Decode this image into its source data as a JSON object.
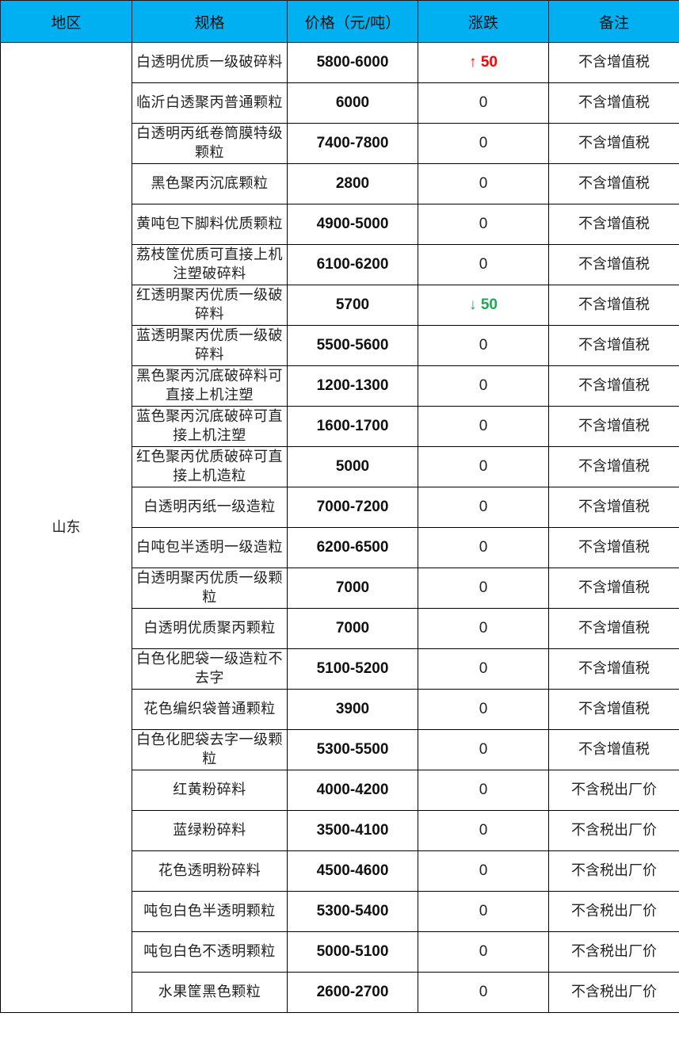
{
  "headers": [
    "地区",
    "规格",
    "价格（元/吨）",
    "涨跌",
    "备注"
  ],
  "region": "山东",
  "colors": {
    "header_bg": "#00B0F0",
    "up": "#FF0000",
    "down": "#1FA855"
  },
  "rows": [
    {
      "spec": "白透明优质一级破碎料",
      "price": "5800-6000",
      "change": "50",
      "direction": "up",
      "note": "不含增值税"
    },
    {
      "spec": "临沂白透聚丙普通颗粒",
      "price": "6000",
      "change": "0",
      "direction": "",
      "note": "不含增值税"
    },
    {
      "spec": "白透明丙纸卷筒膜特级颗粒",
      "price": "7400-7800",
      "change": "0",
      "direction": "",
      "note": "不含增值税"
    },
    {
      "spec": "黑色聚丙沉底颗粒",
      "price": "2800",
      "change": "0",
      "direction": "",
      "note": "不含增值税"
    },
    {
      "spec": "黄吨包下脚料优质颗粒",
      "price": "4900-5000",
      "change": "0",
      "direction": "",
      "note": "不含增值税"
    },
    {
      "spec": "荔枝筐优质可直接上机注塑破碎料",
      "price": "6100-6200",
      "change": "0",
      "direction": "",
      "note": "不含增值税"
    },
    {
      "spec": "红透明聚丙优质一级破碎料",
      "price": "5700",
      "change": "50",
      "direction": "down",
      "note": "不含增值税"
    },
    {
      "spec": "蓝透明聚丙优质一级破碎料",
      "price": "5500-5600",
      "change": "0",
      "direction": "",
      "note": "不含增值税"
    },
    {
      "spec": "黑色聚丙沉底破碎料可直接上机注塑",
      "price": "1200-1300",
      "change": "0",
      "direction": "",
      "note": "不含增值税"
    },
    {
      "spec": "蓝色聚丙沉底破碎可直接上机注塑",
      "price": "1600-1700",
      "change": "0",
      "direction": "",
      "note": "不含增值税"
    },
    {
      "spec": "红色聚丙优质破碎可直接上机造粒",
      "price": "5000",
      "change": "0",
      "direction": "",
      "note": "不含增值税"
    },
    {
      "spec": "白透明丙纸一级造粒",
      "price": "7000-7200",
      "change": "0",
      "direction": "",
      "note": "不含增值税"
    },
    {
      "spec": "白吨包半透明一级造粒",
      "price": "6200-6500",
      "change": "0",
      "direction": "",
      "note": "不含增值税"
    },
    {
      "spec": "白透明聚丙优质一级颗粒",
      "price": "7000",
      "change": "0",
      "direction": "",
      "note": "不含增值税"
    },
    {
      "spec": "白透明优质聚丙颗粒",
      "price": "7000",
      "change": "0",
      "direction": "",
      "note": "不含增值税"
    },
    {
      "spec": "白色化肥袋一级造粒不去字",
      "price": "5100-5200",
      "change": "0",
      "direction": "",
      "note": "不含增值税"
    },
    {
      "spec": "花色编织袋普通颗粒",
      "price": "3900",
      "change": "0",
      "direction": "",
      "note": "不含增值税"
    },
    {
      "spec": "白色化肥袋去字一级颗粒",
      "price": "5300-5500",
      "change": "0",
      "direction": "",
      "note": "不含增值税"
    },
    {
      "spec": "红黄粉碎料",
      "price": "4000-4200",
      "change": "0",
      "direction": "",
      "note": "不含税出厂价"
    },
    {
      "spec": "蓝绿粉碎料",
      "price": "3500-4100",
      "change": "0",
      "direction": "",
      "note": "不含税出厂价"
    },
    {
      "spec": "花色透明粉碎料",
      "price": "4500-4600",
      "change": "0",
      "direction": "",
      "note": "不含税出厂价"
    },
    {
      "spec": "吨包白色半透明颗粒",
      "price": "5300-5400",
      "change": "0",
      "direction": "",
      "note": "不含税出厂价"
    },
    {
      "spec": "吨包白色不透明颗粒",
      "price": "5000-5100",
      "change": "0",
      "direction": "",
      "note": "不含税出厂价"
    },
    {
      "spec": "水果筐黑色颗粒",
      "price": "2600-2700",
      "change": "0",
      "direction": "",
      "note": "不含税出厂价"
    }
  ]
}
